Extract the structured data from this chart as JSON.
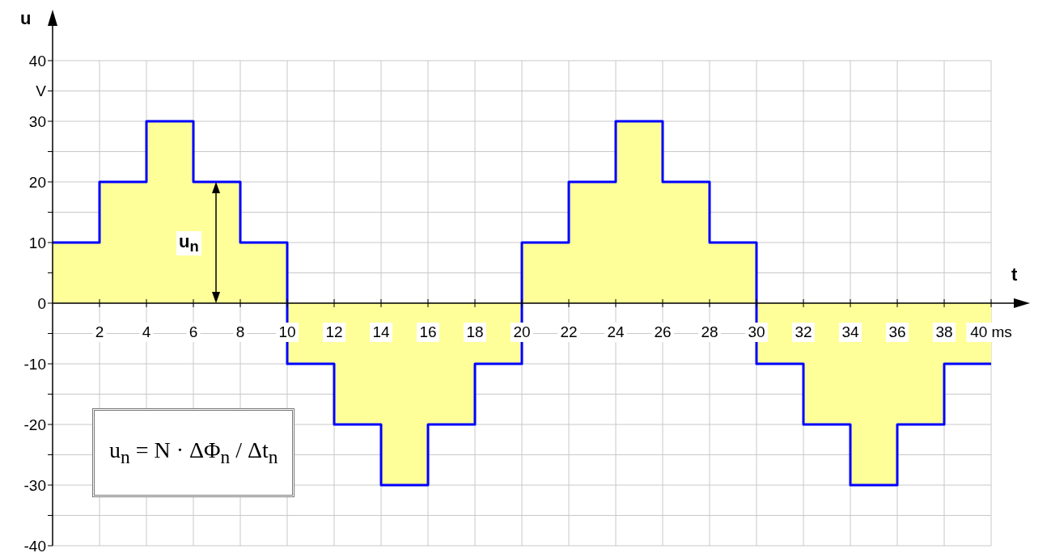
{
  "chart_data": {
    "type": "step",
    "xlabel": "t",
    "ylabel": "u",
    "x": [
      0,
      2,
      4,
      6,
      8,
      10,
      12,
      14,
      16,
      18,
      20,
      22,
      24,
      26,
      28,
      30,
      32,
      34,
      36,
      38,
      40
    ],
    "series": [
      {
        "color": "#0000ff",
        "values": [
          10,
          20,
          30,
          20,
          10,
          -10,
          -20,
          -30,
          -20,
          -10,
          10,
          20,
          30,
          20,
          10,
          -10,
          -20,
          -30,
          -20,
          -10,
          -10
        ]
      }
    ],
    "xlim": [
      0,
      40
    ],
    "xticks": [
      2,
      4,
      6,
      8,
      10,
      12,
      14,
      16,
      18,
      20,
      22,
      24,
      26,
      28,
      30,
      32,
      34,
      36,
      38,
      {
        "value": 40,
        "label": "40 ms"
      }
    ],
    "ylim": [
      -40,
      40
    ],
    "yticks": [
      -40,
      {
        "value": -35,
        "label": null
      },
      -30,
      {
        "value": -25,
        "label": null
      },
      -20,
      {
        "value": -15,
        "label": null
      },
      -10,
      {
        "value": -5,
        "label": null
      },
      0,
      {
        "value": 5,
        "label": null
      },
      10,
      {
        "value": 15,
        "label": null
      },
      20,
      {
        "value": 25,
        "label": null
      },
      30,
      {
        "value": 35,
        "label": "V"
      },
      40
    ],
    "grid": true,
    "marker": "none",
    "annotations": [
      "u$_{n}$",
      "u$_{n}$ = N · ΔΦ$_{n}$ / Δt$_{n}$"
    ]
  }
}
